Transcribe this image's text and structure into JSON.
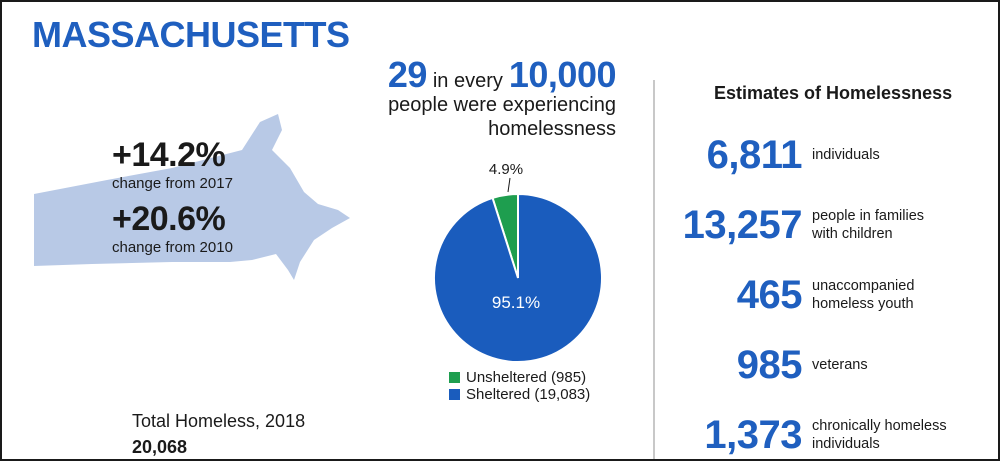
{
  "title": "MASSACHUSETTS",
  "colors": {
    "title_blue": "#1f5fbf",
    "map_fill": "#b8c9e6",
    "sheltered": "#1a5cbd",
    "unsheltered": "#1e9e4f",
    "divider": "#c8c8c8"
  },
  "changes": [
    {
      "value": "+14.2%",
      "label": "change from 2017"
    },
    {
      "value": "+20.6%",
      "label": "change from 2010"
    }
  ],
  "total": {
    "label": "Total Homeless, 2018",
    "value": "20,068"
  },
  "rate": {
    "number": "29",
    "mid_text": "in every",
    "base": "10,000",
    "line2": "people were experiencing",
    "line3": "homelessness"
  },
  "chart_data": {
    "type": "pie",
    "title": "",
    "series": [
      {
        "name": "Unsheltered (985)",
        "value": 4.9,
        "label": "4.9%",
        "color": "#1e9e4f"
      },
      {
        "name": "Sheltered (19,083)",
        "value": 95.1,
        "label": "95.1%",
        "color": "#1a5cbd"
      }
    ],
    "legend_position": "bottom"
  },
  "estimates": {
    "title": "Estimates of Homelessness",
    "items": [
      {
        "number": "6,811",
        "desc": "individuals"
      },
      {
        "number": "13,257",
        "desc": "people in families\nwith children"
      },
      {
        "number": "465",
        "desc": "unaccompanied\nhomeless youth"
      },
      {
        "number": "985",
        "desc": "veterans"
      },
      {
        "number": "1,373",
        "desc": "chronically homeless\nindividuals"
      }
    ]
  }
}
